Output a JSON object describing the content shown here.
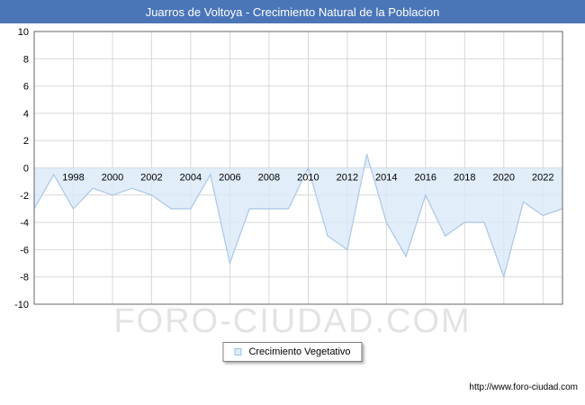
{
  "title": "Juarros de Voltoya - Crecimiento Natural de la Poblacion",
  "watermark": "FORO-CIUDAD.COM",
  "legend": {
    "label": "Crecimiento Vegetativo"
  },
  "footer": {
    "url": "http://www.foro-ciudad.com"
  },
  "chart_data": {
    "type": "area",
    "title": "Juarros de Voltoya - Crecimiento Natural de la Poblacion",
    "xlabel": "",
    "ylabel": "",
    "x_range": [
      1996,
      2023
    ],
    "ylim": [
      -10,
      10
    ],
    "baseline": 0,
    "grid": true,
    "legend_position": "bottom",
    "y_ticks": [
      -10,
      -8,
      -6,
      -4,
      -2,
      0,
      2,
      4,
      6,
      8,
      10
    ],
    "x_tick_labels": [
      1998,
      2000,
      2002,
      2004,
      2006,
      2008,
      2010,
      2012,
      2014,
      2016,
      2018,
      2020,
      2022
    ],
    "series": [
      {
        "name": "Crecimiento Vegetativo",
        "x": [
          1996,
          1997,
          1998,
          1999,
          2000,
          2001,
          2002,
          2003,
          2004,
          2005,
          2006,
          2007,
          2008,
          2009,
          2010,
          2011,
          2012,
          2013,
          2014,
          2015,
          2016,
          2017,
          2018,
          2019,
          2020,
          2021,
          2022,
          2023
        ],
        "values": [
          -3,
          -0.5,
          -3,
          -1.5,
          -2,
          -1.5,
          -2,
          -3,
          -3,
          -0.5,
          -7,
          -3,
          -3,
          -3,
          0,
          -5,
          -6,
          1,
          -4,
          -6.5,
          -2,
          -5,
          -4,
          -4,
          -8,
          -2.5,
          -3.5,
          -3
        ]
      }
    ],
    "colors": {
      "line": "#a9c7e8",
      "fill": "#d9e8f7",
      "grid": "#d8d8d8",
      "border": "#666666",
      "title_bg": "#4a76b8",
      "title_text": "#ffffff",
      "watermark": "#e3e3e3",
      "tick_text": "#000000"
    }
  }
}
